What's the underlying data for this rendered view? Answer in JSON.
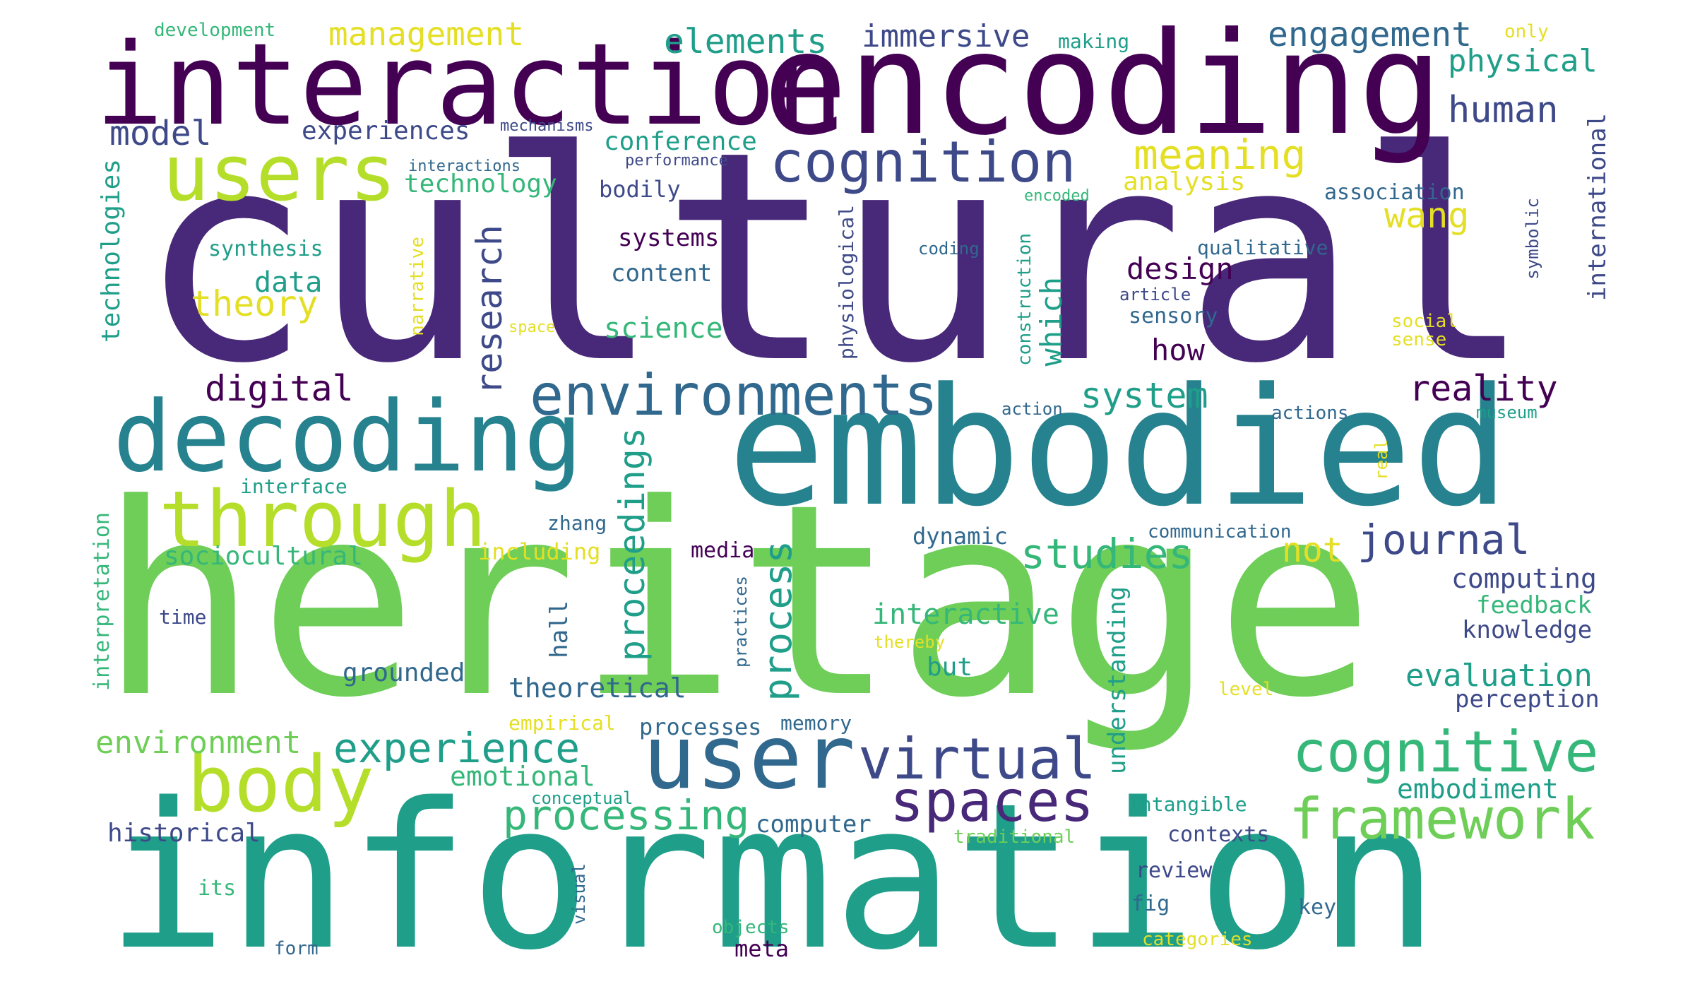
{
  "palette": {
    "dark_purple": "#440154",
    "indigo": "#482878",
    "blue_violet": "#3e4989",
    "steel_blue": "#31688e",
    "teal": "#26828e",
    "sea_green": "#1f9e89",
    "green": "#35b779",
    "light_green": "#6ece58",
    "lime": "#b5de2b",
    "yellow": "#e4df24"
  },
  "words": {
    "cultural": "cultural",
    "heritage": "heritage",
    "information": "information",
    "embodied": "embodied",
    "encoding": "encoding",
    "interaction": "interaction",
    "decoding": "decoding",
    "user": "user",
    "users": "users",
    "through": "through",
    "body": "body",
    "cognitive": "cognitive",
    "framework": "framework",
    "cognition": "cognition",
    "environments": "environments",
    "virtual": "virtual",
    "spaces": "spaces",
    "experience": "experience",
    "processing": "processing",
    "journal": "journal",
    "meaning": "meaning",
    "engagement": "engagement",
    "elements": "elements",
    "management": "management",
    "immersive": "immersive",
    "physical": "physical",
    "human": "human",
    "model": "model",
    "experiences": "experiences",
    "conference": "conference",
    "technology": "technology",
    "technologies": "technologies",
    "analysis": "analysis",
    "wang": "wang",
    "association": "association",
    "international": "international",
    "synthesis": "synthesis",
    "data": "data",
    "theory": "theory",
    "research": "research",
    "systems": "systems",
    "content": "content",
    "science": "science",
    "design": "design",
    "which": "which",
    "how": "how",
    "sensory": "sensory",
    "reality": "reality",
    "digital": "digital",
    "system": "system",
    "studies": "studies",
    "proceedings": "proceedings",
    "process": "process",
    "not": "not",
    "computing": "computing",
    "feedback": "feedback",
    "knowledge": "knowledge",
    "sociocultural": "sociocultural",
    "interactive": "interactive",
    "evaluation": "evaluation",
    "perception": "perception",
    "understanding": "understanding",
    "grounded": "grounded",
    "theoretical": "theoretical",
    "environment": "environment",
    "emotional": "emotional",
    "embodiment": "embodiment",
    "historical": "historical",
    "computer": "computer",
    "contexts": "contexts",
    "review": "review",
    "fig": "fig",
    "key": "key",
    "meta": "meta",
    "objects": "objects",
    "form": "form",
    "its": "its",
    "categories": "categories",
    "intangible": "intangible",
    "traditional": "traditional",
    "conceptual": "conceptual",
    "memory": "memory",
    "processes": "processes",
    "empirical": "empirical",
    "level": "level",
    "but": "but",
    "thereby": "thereby",
    "practices": "practices",
    "hall": "hall",
    "interpretation": "interpretation",
    "time": "time",
    "media": "media",
    "including": "including",
    "zhang": "zhang",
    "interface": "interface",
    "dynamic": "dynamic",
    "communication": "communication",
    "real": "real",
    "action": "action",
    "actions": "actions",
    "museum": "museum",
    "symbolic": "symbolic",
    "social": "social",
    "sense": "sense",
    "qualitative": "qualitative",
    "article": "article",
    "construction": "construction",
    "coding": "coding",
    "physiological": "physiological",
    "encoded": "encoded",
    "narrative": "narrative",
    "space": "space",
    "bodily": "bodily",
    "performance": "performance",
    "interactions": "interactions",
    "mechanisms": "mechanisms",
    "development": "development",
    "making": "making",
    "only": "only",
    "visual": "visual"
  }
}
